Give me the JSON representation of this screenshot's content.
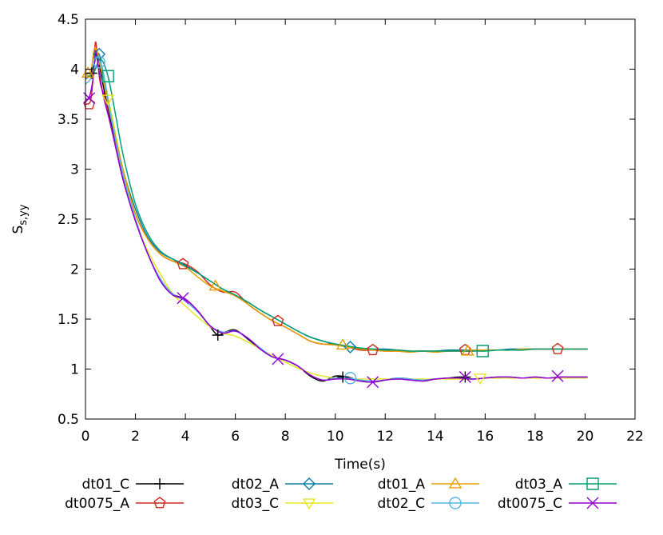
{
  "chart_data": {
    "type": "line",
    "title": "",
    "xlabel": "Time(s)",
    "ylabel": "S",
    "ylabel_sub": "s,yy",
    "xlim": [
      0,
      22
    ],
    "ylim": [
      0.5,
      4.5
    ],
    "xticks": [
      0,
      2,
      4,
      6,
      8,
      10,
      12,
      14,
      16,
      18,
      20,
      22
    ],
    "yticks": [
      0.5,
      1,
      1.5,
      2,
      2.5,
      3,
      3.5,
      4,
      4.5
    ],
    "ytick_labels": [
      "0.5",
      "1",
      "1.5",
      "2",
      "2.5",
      "3",
      "3.5",
      "4",
      "4.5"
    ],
    "grid": false,
    "legend_position": "bottom",
    "series": [
      {
        "name": "dt01_C",
        "color": "#000000",
        "marker": "plus",
        "x": [
          0,
          0.2,
          0.35,
          0.45,
          0.55,
          0.7,
          0.9,
          1.2,
          1.5,
          2,
          2.5,
          3,
          3.5,
          4,
          4.5,
          5,
          5.3,
          5.6,
          6,
          6.5,
          7,
          7.5,
          8,
          8.5,
          9,
          9.5,
          10,
          10.5,
          11,
          11.5,
          12,
          12.5,
          13,
          13.5,
          14,
          14.5,
          15,
          15.5,
          16,
          16.5,
          17,
          17.5,
          18,
          18.5,
          19,
          19.5,
          20,
          20.1
        ],
        "y": [
          3.95,
          3.97,
          4.05,
          4.17,
          4.05,
          3.85,
          3.6,
          3.25,
          2.9,
          2.5,
          2.15,
          1.9,
          1.75,
          1.7,
          1.58,
          1.42,
          1.34,
          1.37,
          1.39,
          1.3,
          1.2,
          1.12,
          1.09,
          1.03,
          0.93,
          0.88,
          0.93,
          0.92,
          0.88,
          0.87,
          0.89,
          0.91,
          0.9,
          0.88,
          0.9,
          0.91,
          0.92,
          0.9,
          0.91,
          0.92,
          0.92,
          0.91,
          0.92,
          0.91,
          0.92,
          0.92,
          0.92,
          0.92
        ],
        "marker_x": [
          0.25,
          5.3,
          10.3,
          15.2
        ],
        "marker_y": [
          3.96,
          1.34,
          0.92,
          0.92
        ]
      },
      {
        "name": "dt0075_A",
        "color": "#cc2a1e",
        "marker": "pentagon",
        "x": [
          0,
          0.2,
          0.3,
          0.4,
          0.5,
          0.6,
          0.8,
          1,
          1.5,
          2,
          2.5,
          3,
          3.5,
          4,
          4.5,
          5,
          5.5,
          6,
          6.5,
          7,
          7.5,
          8,
          8.5,
          9,
          9.5,
          10,
          10.5,
          11,
          11.5,
          12,
          12.5,
          13,
          13.5,
          14,
          14.5,
          15,
          15.5,
          16,
          16.5,
          17,
          17.5,
          18,
          18.5,
          19,
          19.5,
          20,
          20.1
        ],
        "y": [
          3.65,
          3.68,
          3.9,
          4.27,
          4.05,
          3.85,
          3.7,
          3.45,
          2.95,
          2.55,
          2.3,
          2.15,
          2.08,
          2.05,
          1.97,
          1.84,
          1.77,
          1.77,
          1.65,
          1.56,
          1.48,
          1.42,
          1.35,
          1.28,
          1.25,
          1.25,
          1.22,
          1.19,
          1.19,
          1.18,
          1.18,
          1.17,
          1.18,
          1.17,
          1.18,
          1.18,
          1.18,
          1.19,
          1.19,
          1.19,
          1.2,
          1.2,
          1.2,
          1.2,
          1.2,
          1.2,
          1.2
        ],
        "marker_x": [
          0.15,
          3.9,
          7.7,
          11.5,
          15.2,
          18.9
        ],
        "marker_y": [
          3.65,
          2.05,
          1.48,
          1.19,
          1.19,
          1.2
        ]
      },
      {
        "name": "dt02_A",
        "color": "#0c7ba7",
        "marker": "diamond",
        "x": [
          0,
          0.2,
          0.4,
          0.55,
          0.7,
          1,
          1.5,
          2,
          2.5,
          3,
          3.5,
          4,
          4.5,
          5,
          5.5,
          6,
          6.5,
          7,
          7.5,
          8,
          8.5,
          9,
          9.5,
          10,
          10.5,
          11,
          11.5,
          12,
          12.5,
          13,
          13.5,
          14,
          14.5,
          15,
          15.5,
          16,
          16.5,
          17,
          17.5,
          18,
          18.5,
          19,
          19.5,
          20,
          20.1
        ],
        "y": [
          3.9,
          3.95,
          4.1,
          4.15,
          3.95,
          3.6,
          3.0,
          2.6,
          2.32,
          2.17,
          2.1,
          2.04,
          1.96,
          1.88,
          1.8,
          1.74,
          1.67,
          1.59,
          1.52,
          1.45,
          1.38,
          1.32,
          1.28,
          1.25,
          1.22,
          1.21,
          1.2,
          1.2,
          1.19,
          1.18,
          1.18,
          1.18,
          1.19,
          1.19,
          1.19,
          1.19,
          1.19,
          1.2,
          1.2,
          1.2,
          1.2,
          1.2,
          1.2,
          1.2,
          1.2
        ],
        "marker_x": [
          0.55,
          10.6
        ],
        "marker_y": [
          4.15,
          1.22
        ]
      },
      {
        "name": "dt03_C",
        "color": "#e6e626",
        "marker": "triangle-down",
        "x": [
          0,
          0.3,
          0.6,
          0.8,
          1,
          1.5,
          2,
          2.5,
          3,
          3.5,
          4,
          4.5,
          5,
          5.5,
          6,
          6.5,
          7,
          7.5,
          8,
          8.5,
          9,
          9.5,
          10,
          10.5,
          11,
          11.5,
          12,
          12.5,
          13,
          13.5,
          14,
          14.5,
          15,
          15.5,
          16,
          16.5,
          17,
          17.5,
          18,
          18.5,
          19,
          19.5,
          20,
          20.1
        ],
        "y": [
          3.95,
          3.98,
          4.05,
          3.85,
          3.6,
          3.0,
          2.5,
          2.18,
          1.95,
          1.75,
          1.63,
          1.52,
          1.42,
          1.36,
          1.33,
          1.27,
          1.2,
          1.13,
          1.07,
          1.01,
          0.96,
          0.93,
          0.91,
          0.9,
          0.9,
          0.9,
          0.9,
          0.9,
          0.9,
          0.9,
          0.9,
          0.9,
          0.9,
          0.9,
          0.91,
          0.91,
          0.91,
          0.91,
          0.91,
          0.91,
          0.91,
          0.91,
          0.91,
          0.91
        ],
        "marker_x": [
          0.9,
          15.8
        ],
        "marker_y": [
          3.7,
          0.91
        ]
      },
      {
        "name": "dt01_A",
        "color": "#e69f00",
        "marker": "triangle-up",
        "x": [
          0,
          0.2,
          0.35,
          0.5,
          0.7,
          1,
          1.5,
          2,
          2.5,
          3,
          3.5,
          4,
          4.5,
          5,
          5.5,
          6,
          6.5,
          7,
          7.5,
          8,
          8.5,
          9,
          9.5,
          10,
          10.5,
          11,
          11.5,
          12,
          12.5,
          13,
          13.5,
          14,
          14.5,
          15,
          15.5,
          16,
          16.5,
          17,
          17.5,
          18,
          18.5,
          19,
          19.5,
          20,
          20.1
        ],
        "y": [
          3.95,
          3.95,
          4.2,
          4.15,
          3.9,
          3.55,
          3.0,
          2.55,
          2.3,
          2.15,
          2.08,
          2.02,
          1.92,
          1.83,
          1.78,
          1.73,
          1.65,
          1.56,
          1.48,
          1.42,
          1.35,
          1.28,
          1.25,
          1.24,
          1.22,
          1.2,
          1.19,
          1.18,
          1.18,
          1.17,
          1.18,
          1.17,
          1.18,
          1.18,
          1.19,
          1.19,
          1.19,
          1.19,
          1.2,
          1.2,
          1.2,
          1.2,
          1.2,
          1.2,
          1.2
        ],
        "marker_x": [
          0.1,
          5.2,
          10.3,
          15.3
        ],
        "marker_y": [
          3.96,
          1.83,
          1.24,
          1.18
        ]
      },
      {
        "name": "dt02_C",
        "color": "#56b4e9",
        "marker": "circle",
        "x": [
          0,
          0.2,
          0.4,
          0.6,
          0.8,
          1,
          1.5,
          2,
          2.5,
          3,
          3.5,
          4,
          4.5,
          5,
          5.5,
          6,
          6.5,
          7,
          7.5,
          8,
          8.5,
          9,
          9.5,
          10,
          10.5,
          11,
          11.5,
          12,
          12.5,
          13,
          13.5,
          14,
          14.5,
          15,
          15.5,
          16,
          16.5,
          17,
          17.5,
          18,
          18.5,
          19,
          19.5,
          20,
          20.1
        ],
        "y": [
          3.85,
          3.9,
          4.0,
          4.07,
          3.85,
          3.55,
          2.95,
          2.5,
          2.15,
          1.9,
          1.75,
          1.68,
          1.57,
          1.43,
          1.37,
          1.38,
          1.31,
          1.21,
          1.12,
          1.09,
          1.03,
          0.94,
          0.89,
          0.91,
          0.91,
          0.89,
          0.88,
          0.89,
          0.91,
          0.9,
          0.89,
          0.9,
          0.91,
          0.91,
          0.9,
          0.91,
          0.92,
          0.92,
          0.91,
          0.92,
          0.91,
          0.92,
          0.92,
          0.92,
          0.92
        ],
        "marker_x": [
          0.55,
          10.6
        ],
        "marker_y": [
          4.07,
          0.91
        ]
      },
      {
        "name": "dt03_A",
        "color": "#009e73",
        "marker": "square",
        "x": [
          0,
          0.3,
          0.6,
          0.9,
          1.2,
          1.5,
          2,
          2.5,
          3,
          3.5,
          4,
          4.5,
          5,
          5.5,
          6,
          6.5,
          7,
          7.5,
          8,
          8.5,
          9,
          9.5,
          10,
          10.5,
          11,
          11.5,
          12,
          12.5,
          13,
          13.5,
          14,
          14.5,
          15,
          15.5,
          16,
          16.5,
          17,
          17.5,
          18,
          18.5,
          19,
          19.5,
          20,
          20.1
        ],
        "y": [
          3.92,
          3.95,
          4.1,
          3.93,
          3.55,
          3.15,
          2.65,
          2.35,
          2.18,
          2.1,
          2.03,
          1.96,
          1.88,
          1.8,
          1.74,
          1.67,
          1.59,
          1.52,
          1.45,
          1.38,
          1.32,
          1.28,
          1.25,
          1.23,
          1.21,
          1.2,
          1.19,
          1.19,
          1.18,
          1.18,
          1.18,
          1.18,
          1.18,
          1.18,
          1.18,
          1.19,
          1.19,
          1.19,
          1.2,
          1.2,
          1.2,
          1.2,
          1.2,
          1.2
        ],
        "marker_x": [
          0.9,
          15.9
        ],
        "marker_y": [
          3.93,
          1.18
        ]
      },
      {
        "name": "dt0075_C",
        "color": "#9400d3",
        "marker": "x",
        "x": [
          0,
          0.15,
          0.3,
          0.4,
          0.5,
          0.7,
          1,
          1.5,
          2,
          2.5,
          3,
          3.5,
          4,
          4.5,
          5,
          5.5,
          6,
          6.5,
          7,
          7.5,
          8,
          8.5,
          9,
          9.5,
          10,
          10.5,
          11,
          11.5,
          12,
          12.5,
          13,
          13.5,
          14,
          14.5,
          15,
          15.5,
          16,
          16.5,
          17,
          17.5,
          18,
          18.5,
          19,
          19.5,
          20,
          20.1
        ],
        "y": [
          3.7,
          3.72,
          3.9,
          4.18,
          4.05,
          3.75,
          3.45,
          2.9,
          2.48,
          2.15,
          1.88,
          1.74,
          1.7,
          1.58,
          1.43,
          1.36,
          1.38,
          1.31,
          1.2,
          1.12,
          1.09,
          1.03,
          0.94,
          0.89,
          0.9,
          0.9,
          0.88,
          0.87,
          0.89,
          0.9,
          0.89,
          0.88,
          0.9,
          0.91,
          0.91,
          0.9,
          0.91,
          0.92,
          0.92,
          0.91,
          0.92,
          0.91,
          0.92,
          0.92,
          0.92,
          0.92
        ],
        "marker_x": [
          0.15,
          3.9,
          7.7,
          11.5,
          15.2,
          18.9
        ],
        "marker_y": [
          3.71,
          1.71,
          1.1,
          0.87,
          0.92,
          0.93
        ]
      }
    ]
  }
}
